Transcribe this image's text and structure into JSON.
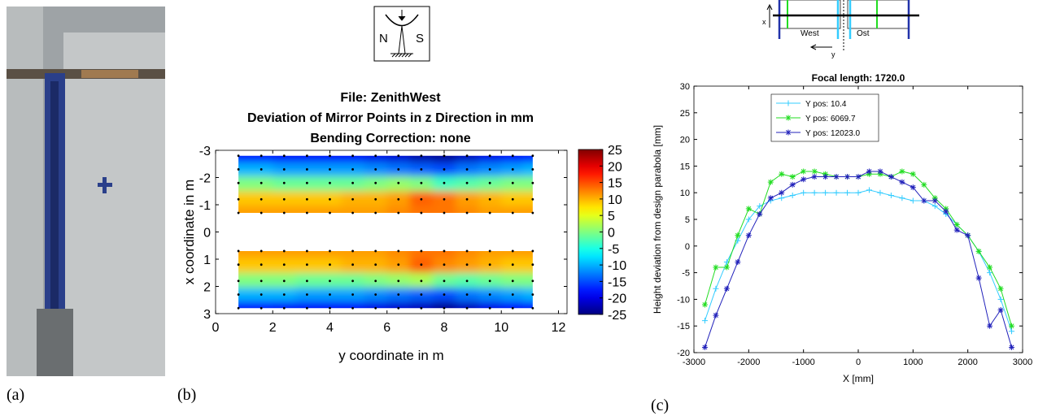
{
  "figure": {
    "labels": {
      "a": "(a)",
      "b": "(b)",
      "c": "(c)"
    },
    "icon": {
      "north": "N",
      "south": "S"
    },
    "diagram": {
      "x_axis": "x",
      "y_axis": "y",
      "west": "West",
      "east": "Ost"
    }
  },
  "chart_data": [
    {
      "type": "heatmap",
      "title": [
        "File: ZenithWest",
        "Deviation of Mirror Points in z Direction in mm",
        "Bending Correction: none"
      ],
      "xlabel": "y coordinate in m",
      "ylabel": "x coordinate in m",
      "colormap": "jet",
      "x": [
        0.8,
        1.6,
        2.4,
        3.2,
        4.0,
        4.8,
        5.6,
        6.4,
        7.2,
        8.0,
        8.8,
        9.6,
        10.4,
        11.1
      ],
      "y": [
        -2.8,
        -2.3,
        -1.8,
        -1.2,
        -0.7,
        0.7,
        1.2,
        1.8,
        2.3,
        2.8
      ],
      "values": [
        [
          -18,
          -18,
          -19,
          -19,
          -19,
          -19,
          -20,
          -21,
          -23,
          -24,
          -22,
          -20,
          -19,
          -18
        ],
        [
          -10,
          -10,
          -11,
          -11,
          -11,
          -11,
          -12,
          -13,
          -14,
          -15,
          -13,
          -12,
          -11,
          -10
        ],
        [
          0,
          0,
          -1,
          -1,
          -1,
          -1,
          0,
          1,
          0,
          -3,
          -2,
          -1,
          0,
          0
        ],
        [
          9,
          9,
          9,
          9,
          9,
          10,
          10,
          11,
          14,
          13,
          11,
          10,
          9,
          9
        ],
        [
          11,
          11,
          11,
          11,
          11,
          11,
          11,
          12,
          13,
          13,
          12,
          11,
          11,
          11
        ],
        [
          11,
          11,
          11,
          11,
          11,
          11,
          11,
          12,
          13,
          13,
          12,
          11,
          11,
          11
        ],
        [
          9,
          9,
          9,
          9,
          9,
          10,
          10,
          11,
          14,
          12,
          11,
          10,
          9,
          9
        ],
        [
          0,
          0,
          0,
          -1,
          -1,
          -1,
          0,
          1,
          2,
          -1,
          -2,
          -1,
          0,
          0
        ],
        [
          -10,
          -10,
          -10,
          -11,
          -11,
          -11,
          -12,
          -13,
          -14,
          -15,
          -13,
          -12,
          -11,
          -10
        ],
        [
          -18,
          -18,
          -19,
          -19,
          -19,
          -19,
          -20,
          -21,
          -22,
          -24,
          -22,
          -20,
          -19,
          -18
        ]
      ],
      "clim": [
        -25,
        25
      ],
      "colorbar_ticks": [
        -25,
        -20,
        -15,
        -10,
        -5,
        0,
        5,
        10,
        15,
        20,
        25
      ],
      "xlim": [
        0,
        12.3
      ],
      "xticks": [
        0,
        2,
        4,
        6,
        8,
        10,
        12
      ],
      "ylim": [
        -3,
        3
      ],
      "yticks": [
        -3,
        -2,
        -1,
        0,
        1,
        2,
        3
      ],
      "y_reversed": true
    },
    {
      "type": "line",
      "title": "Focal length: 1720.0",
      "xlabel": "X [mm]",
      "ylabel": "Height deviation from design parabola [mm]",
      "x": [
        -2800,
        -2600,
        -2400,
        -2200,
        -2000,
        -1800,
        -1600,
        -1400,
        -1200,
        -1000,
        -800,
        -600,
        -400,
        -200,
        0,
        200,
        400,
        600,
        800,
        1000,
        1200,
        1400,
        1600,
        1800,
        2000,
        2200,
        2400,
        2600,
        2800
      ],
      "series": [
        {
          "name": "Y pos: 10.4",
          "color": "#33ccff",
          "marker": "plus",
          "values": [
            -14,
            -8,
            -3,
            1,
            5,
            7.5,
            8.5,
            9,
            9.5,
            10,
            10,
            10,
            10,
            10,
            10,
            10.5,
            10,
            9.5,
            9,
            8.5,
            8.5,
            7.5,
            6,
            4,
            2,
            -1,
            -5,
            -10,
            -16
          ]
        },
        {
          "name": "Y pos: 6069.7",
          "color": "#22dd22",
          "marker": "star",
          "values": [
            -11,
            -4,
            -4,
            2,
            7,
            6,
            12,
            13.5,
            13,
            14,
            14,
            13.5,
            13,
            13,
            13,
            13.5,
            13.5,
            13,
            14,
            13.5,
            11.5,
            9,
            7,
            4,
            2,
            -1,
            -4,
            -8,
            -15
          ]
        },
        {
          "name": "Y pos: 12023.0",
          "color": "#2222bb",
          "marker": "star",
          "values": [
            -19,
            -13,
            -8,
            -3,
            2,
            6,
            9,
            10,
            11.5,
            12.5,
            13,
            13,
            13,
            13,
            13,
            14,
            14,
            13,
            12,
            11,
            8.5,
            8.5,
            6.5,
            3,
            2,
            -6,
            -15,
            -12,
            -19
          ]
        }
      ],
      "xlim": [
        -3000,
        3000
      ],
      "xticks": [
        -3000,
        -2000,
        -1000,
        0,
        1000,
        2000,
        3000
      ],
      "ylim": [
        -20,
        30
      ],
      "yticks": [
        -20,
        -15,
        -10,
        -5,
        0,
        5,
        10,
        15,
        20,
        25,
        30
      ],
      "legend": "top-center"
    }
  ]
}
